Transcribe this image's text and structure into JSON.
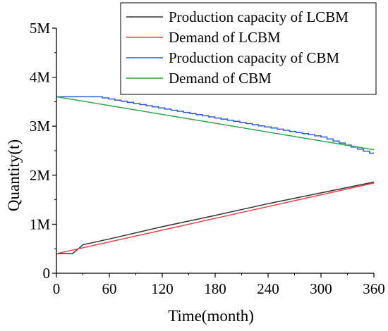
{
  "chart_data": {
    "type": "line",
    "title": "",
    "xlabel": "Time(month)",
    "ylabel": "Quantity(t)",
    "xlim": [
      0,
      360
    ],
    "ylim": [
      0,
      5000000
    ],
    "x_ticks": [
      0,
      60,
      120,
      180,
      240,
      300,
      360
    ],
    "x_tick_labels": [
      "0",
      "60",
      "120",
      "180",
      "240",
      "300",
      "360"
    ],
    "y_ticks": [
      0,
      1000000,
      2000000,
      3000000,
      4000000,
      5000000
    ],
    "y_tick_labels": [
      "0",
      "1M",
      "2M",
      "3M",
      "4M",
      "5M"
    ],
    "grid": false,
    "legend_position": "top-right",
    "series": [
      {
        "name": "Production capacity of LCBM",
        "color": "#333333",
        "style": "line",
        "x": [
          0,
          18,
          25,
          30,
          60,
          120,
          180,
          240,
          300,
          360
        ],
        "y": [
          400000,
          400000,
          500000,
          580000,
          700000,
          950000,
          1180000,
          1420000,
          1640000,
          1860000
        ]
      },
      {
        "name": "Demand of LCBM",
        "color": "#e8434b",
        "style": "line",
        "x": [
          0,
          360
        ],
        "y": [
          400000,
          1840000
        ]
      },
      {
        "name": "Production capacity of CBM",
        "color": "#2a5bd7",
        "style": "step",
        "x": [
          0,
          45,
          300,
          355,
          360
        ],
        "y": [
          3600000,
          3600000,
          2780000,
          2450000,
          2450000
        ]
      },
      {
        "name": "Demand of CBM",
        "color": "#2ea44f",
        "style": "line",
        "x": [
          0,
          360
        ],
        "y": [
          3600000,
          2520000
        ]
      }
    ]
  }
}
